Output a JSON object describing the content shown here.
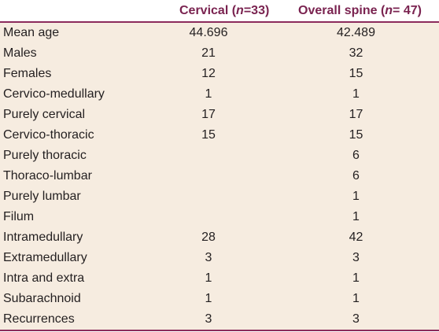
{
  "header": {
    "cervical_prefix": "Cervical (",
    "cervical_n": "n",
    "cervical_suffix": "=33)",
    "overall_prefix": "Overall spine (",
    "overall_n": "n",
    "overall_suffix": "= 47)"
  },
  "rows": [
    {
      "label": "Mean age",
      "cervical": "44.696",
      "overall": "42.489"
    },
    {
      "label": "Males",
      "cervical": "21",
      "overall": "32"
    },
    {
      "label": "Females",
      "cervical": "12",
      "overall": "15"
    },
    {
      "label": "Cervico-medullary",
      "cervical": "1",
      "overall": "1"
    },
    {
      "label": "Purely cervical",
      "cervical": "17",
      "overall": "17"
    },
    {
      "label": "Cervico-thoracic",
      "cervical": "15",
      "overall": "15"
    },
    {
      "label": "Purely thoracic",
      "cervical": "",
      "overall": "6"
    },
    {
      "label": "Thoraco-lumbar",
      "cervical": "",
      "overall": "6"
    },
    {
      "label": "Purely lumbar",
      "cervical": "",
      "overall": "1"
    },
    {
      "label": "Filum",
      "cervical": "",
      "overall": "1"
    },
    {
      "label": "Intramedullary",
      "cervical": "28",
      "overall": "42"
    },
    {
      "label": "Extramedullary",
      "cervical": "3",
      "overall": "3"
    },
    {
      "label": "Intra and extra",
      "cervical": "1",
      "overall": "1"
    },
    {
      "label": "Subarachnoid",
      "cervical": "1",
      "overall": "1"
    },
    {
      "label": "Recurrences",
      "cervical": "3",
      "overall": "3"
    }
  ],
  "colors": {
    "header_text": "#7a2350",
    "rule": "#8b2b5c",
    "body_background": "#f6ece0",
    "text": "#231f20"
  }
}
